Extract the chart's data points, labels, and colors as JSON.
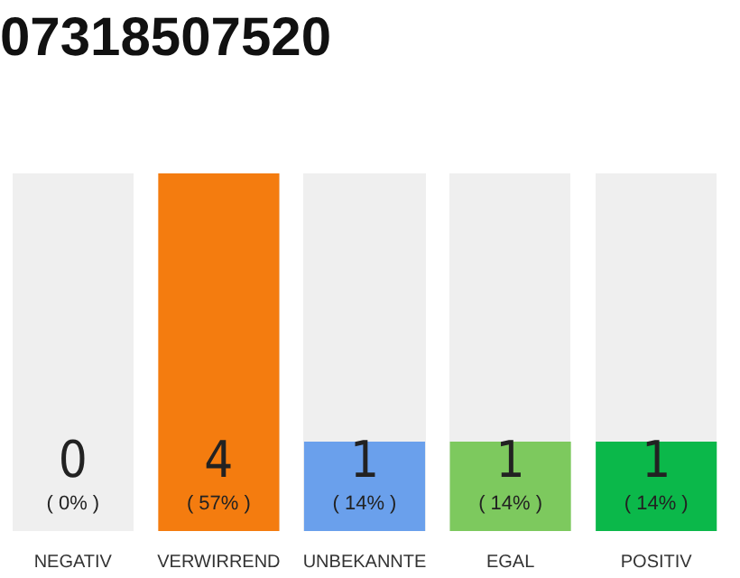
{
  "chart_data": {
    "type": "bar",
    "title": "07318507520",
    "categories": [
      "NEGATIV",
      "VERWIRREND",
      "UNBEKANNTE",
      "EGAL",
      "POSITIV"
    ],
    "values": [
      0,
      4,
      1,
      1,
      1
    ],
    "colors": [
      "#9e9e9e",
      "#f47c0f",
      "#6aa0ec",
      "#7dc95e",
      "#0bb84a"
    ],
    "data_labels": true,
    "annotations": [
      {
        "text": "( 0% )",
        "x": "NEGATIV",
        "y": 0
      },
      {
        "text": "( 57% )",
        "x": "VERWIRREND",
        "y": 0
      },
      {
        "text": "( 14% )",
        "x": "UNBEKANNTE",
        "y": 0
      },
      {
        "text": "( 14% )",
        "x": "EGAL",
        "y": 0
      },
      {
        "text": "( 14% )",
        "x": "POSITIV",
        "y": 0
      }
    ],
    "tick_labels": "x"
  }
}
